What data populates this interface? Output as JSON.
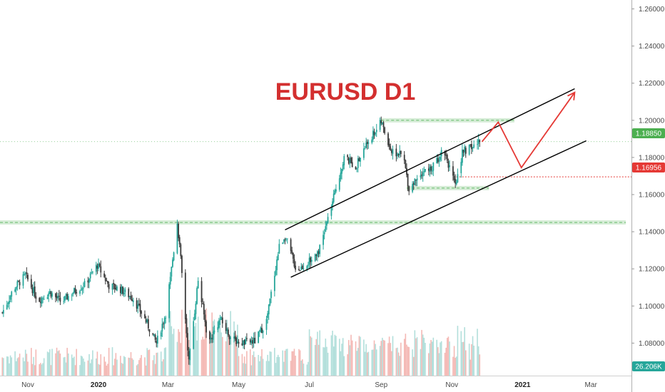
{
  "chart_title": "EURUSD D1",
  "colors": {
    "up": "#26a69a",
    "down": "#3a3a3a",
    "vol_up": "#b2dfdb",
    "vol_down": "#f4b9b5",
    "title": "#d32f2f",
    "arrow": "#e53935",
    "zone_fill": "#c8e6c9",
    "zone_line": "#66bb6a",
    "price_tag": "#4caf50",
    "level_tag": "#e53935",
    "channel": "#000000"
  },
  "price_tags": {
    "current": "1.18850",
    "level": "1.16956",
    "volume": "26.206K"
  },
  "chart_data": {
    "type": "candlestick",
    "title": "EURUSD D1",
    "symbol": "EURUSD",
    "timeframe": "D1",
    "x_axis_labels": [
      "Nov",
      "2020",
      "Mar",
      "May",
      "Jul",
      "Sep",
      "Nov",
      "2021",
      "Mar"
    ],
    "y_axis_labels": [
      "1.26000",
      "1.24000",
      "1.22000",
      "1.20000",
      "1.18000",
      "1.16000",
      "1.14000",
      "1.12000",
      "1.10000",
      "1.08000"
    ],
    "ylim": [
      1.0625,
      1.2648
    ],
    "xlim": [
      "2019-10-08",
      "2021-04-05"
    ],
    "grid": false,
    "last_price": 1.1885,
    "level_price": 1.16956,
    "volume_last": "26.206K",
    "price_path": [
      [
        "2019-10-10",
        1.0965
      ],
      [
        "2019-10-20",
        1.1095
      ],
      [
        "2019-10-30",
        1.1165
      ],
      [
        "2019-11-10",
        1.103
      ],
      [
        "2019-11-20",
        1.1075
      ],
      [
        "2019-11-30",
        1.102
      ],
      [
        "2019-12-10",
        1.1075
      ],
      [
        "2019-12-20",
        1.1115
      ],
      [
        "2019-12-31",
        1.122
      ],
      [
        "2020-01-10",
        1.111
      ],
      [
        "2020-01-20",
        1.109
      ],
      [
        "2020-01-31",
        1.104
      ],
      [
        "2020-02-10",
        1.093
      ],
      [
        "2020-02-20",
        1.08
      ],
      [
        "2020-02-28",
        1.096
      ],
      [
        "2020-03-06",
        1.13
      ],
      [
        "2020-03-09",
        1.145
      ],
      [
        "2020-03-12",
        1.125
      ],
      [
        "2020-03-19",
        1.07
      ],
      [
        "2020-03-27",
        1.114
      ],
      [
        "2020-04-05",
        1.08
      ],
      [
        "2020-04-15",
        1.093
      ],
      [
        "2020-04-25",
        1.082
      ],
      [
        "2020-05-05",
        1.08
      ],
      [
        "2020-05-15",
        1.081
      ],
      [
        "2020-05-25",
        1.092
      ],
      [
        "2020-06-05",
        1.132
      ],
      [
        "2020-06-10",
        1.138
      ],
      [
        "2020-06-20",
        1.119
      ],
      [
        "2020-07-01",
        1.124
      ],
      [
        "2020-07-10",
        1.131
      ],
      [
        "2020-07-21",
        1.156
      ],
      [
        "2020-07-31",
        1.18
      ],
      [
        "2020-08-10",
        1.175
      ],
      [
        "2020-08-20",
        1.188
      ],
      [
        "2020-09-01",
        1.199
      ],
      [
        "2020-09-10",
        1.183
      ],
      [
        "2020-09-20",
        1.181
      ],
      [
        "2020-09-25",
        1.163
      ],
      [
        "2020-10-05",
        1.172
      ],
      [
        "2020-10-15",
        1.174
      ],
      [
        "2020-10-25",
        1.185
      ],
      [
        "2020-11-04",
        1.164
      ],
      [
        "2020-11-10",
        1.183
      ],
      [
        "2020-11-20",
        1.186
      ],
      [
        "2020-11-25",
        1.1885
      ]
    ],
    "annotations": {
      "horizontal_zones": [
        {
          "price": 1.2,
          "from": "2020-09-01",
          "to": "2020-12-25"
        },
        {
          "price": 1.145,
          "from": "2019-10-08",
          "to": "2021-04-01"
        },
        {
          "price": 1.1635,
          "from": "2020-09-23",
          "to": "2020-12-03"
        }
      ],
      "dotted_level": {
        "price": 1.16956,
        "from": "2020-11-05"
      },
      "channel_upper": [
        [
          "2020-06-10",
          1.141
        ],
        [
          "2021-02-15",
          1.217
        ]
      ],
      "channel_lower": [
        [
          "2020-06-15",
          1.1155
        ],
        [
          "2021-02-25",
          1.189
        ]
      ],
      "projection": [
        [
          "2020-11-27",
          1.1885
        ],
        [
          "2020-12-11",
          1.199
        ],
        [
          "2020-12-31",
          1.1745
        ],
        [
          "2021-02-15",
          1.215
        ]
      ]
    }
  }
}
